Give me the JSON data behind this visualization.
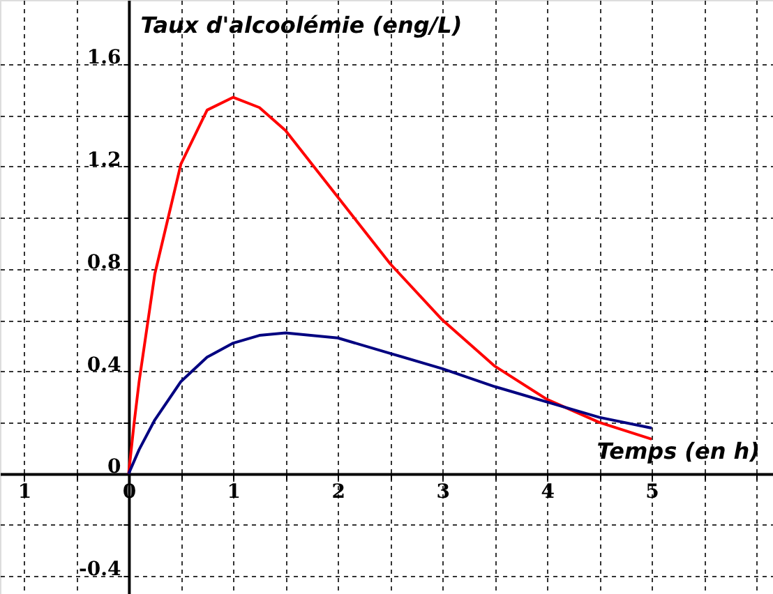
{
  "chart_data": {
    "type": "line",
    "xlabel": "Temps (en h)",
    "ylabel": "Taux d'alcoolémie (eng/L)",
    "series": [
      {
        "color": "#ff0000",
        "x": [
          0,
          0.05,
          0.1,
          0.25,
          0.5,
          0.75,
          1,
          1.25,
          1.5,
          2,
          2.5,
          3,
          3.5,
          4,
          4.5,
          5
        ],
        "values": [
          0,
          0.19,
          0.36,
          0.78,
          1.21,
          1.42,
          1.47,
          1.43,
          1.34,
          1.08,
          0.82,
          0.6,
          0.42,
          0.29,
          0.2,
          0.135
        ]
      },
      {
        "color": "#000080",
        "x": [
          0,
          0.1,
          0.25,
          0.5,
          0.75,
          1,
          1.25,
          1.5,
          2,
          2.5,
          3,
          3.5,
          4,
          4.5,
          5
        ],
        "values": [
          0,
          0.094,
          0.21,
          0.36,
          0.455,
          0.51,
          0.54,
          0.55,
          0.53,
          0.47,
          0.41,
          0.34,
          0.28,
          0.22,
          0.178
        ]
      }
    ],
    "xlim": [
      -1.23,
      6.16
    ],
    "ylim": [
      -0.47,
      1.85
    ],
    "xticks": [
      {
        "value": -1,
        "label": "1"
      },
      {
        "value": -0.5,
        "label": null
      },
      0,
      {
        "value": 0.5,
        "label": null
      },
      1,
      {
        "value": 1.5,
        "label": null
      },
      2,
      {
        "value": 2.5,
        "label": null
      },
      3,
      {
        "value": 3.5,
        "label": null
      },
      4,
      {
        "value": 4.5,
        "label": null
      },
      5,
      {
        "value": 5.5,
        "label": null
      },
      {
        "value": 6,
        "label": null
      }
    ],
    "yticks": [
      -0.4,
      {
        "value": -0.2,
        "label": null
      },
      0,
      {
        "value": 0.2,
        "label": null
      },
      0.4,
      {
        "value": 0.6,
        "label": null
      },
      0.8,
      {
        "value": 1.0,
        "label": null
      },
      1.2,
      {
        "value": 1.4,
        "label": null
      },
      1.6
    ],
    "grid": true,
    "marker": "none",
    "line_style": "solid"
  }
}
